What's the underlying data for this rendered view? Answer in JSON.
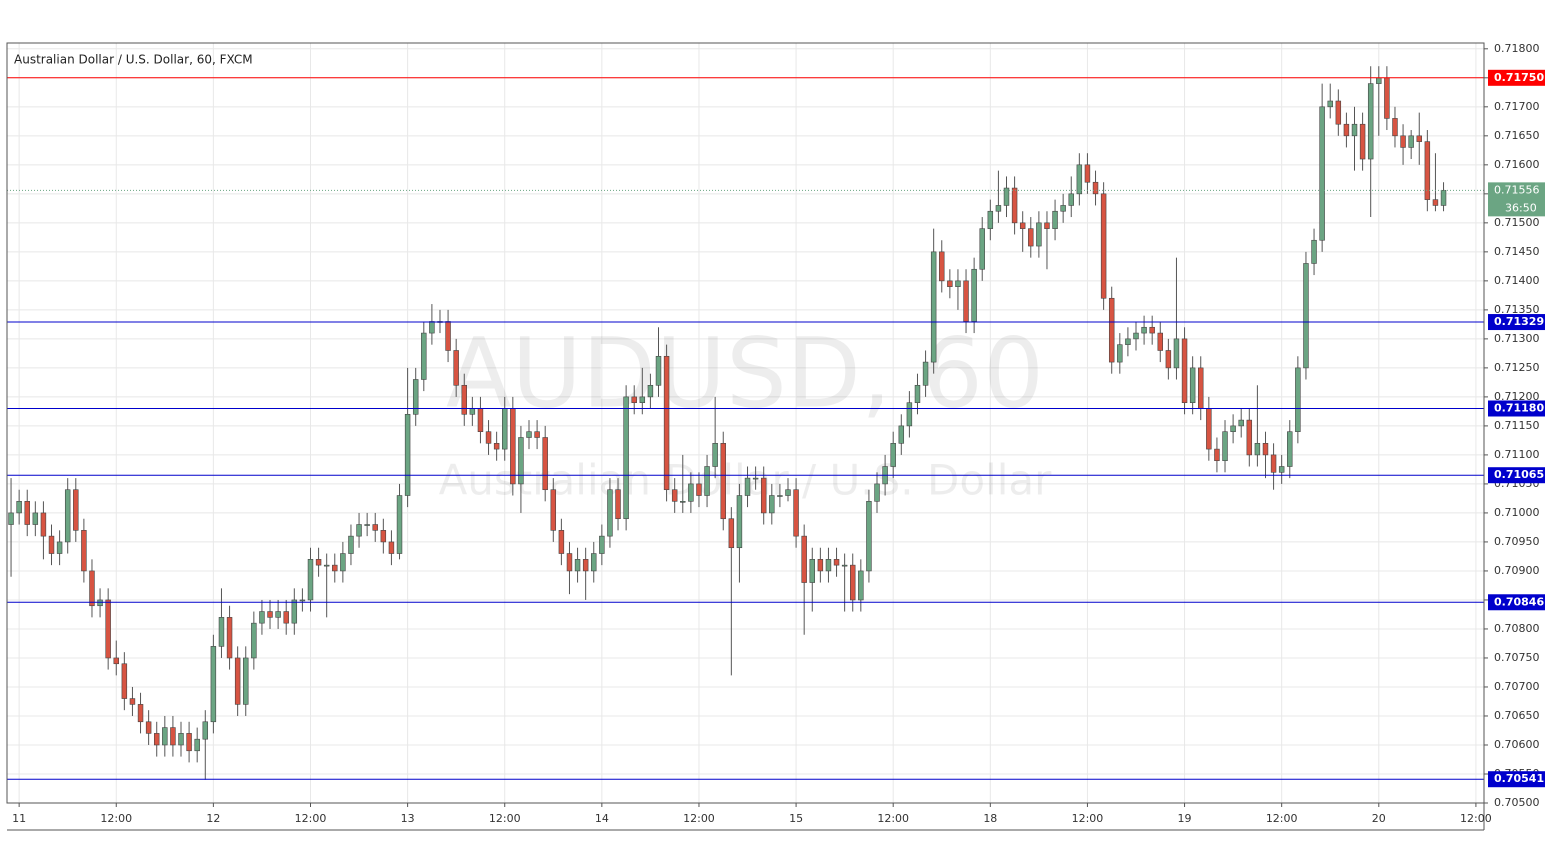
{
  "chart_data": {
    "type": "candlestick",
    "title": "Australian Dollar / U.S. Dollar, 60, FXCM",
    "watermark": "AUDUSD, 60",
    "watermark_subtitle": "Australian Dollar / U.S. Dollar",
    "up_color": "#6ba583",
    "down_color": "#d75442",
    "grid": true,
    "ylim": [
      0.705,
      0.7181
    ],
    "xlim": [
      -0.5,
      182
    ],
    "yticks": [
      {
        "value": 0.705,
        "label": "0.70500"
      },
      {
        "value": 0.7055,
        "label": "0.70550"
      },
      {
        "value": 0.706,
        "label": "0.70600"
      },
      {
        "value": 0.7065,
        "label": "0.70650"
      },
      {
        "value": 0.707,
        "label": "0.70700"
      },
      {
        "value": 0.7075,
        "label": "0.70750"
      },
      {
        "value": 0.708,
        "label": "0.70800"
      },
      {
        "value": 0.7085,
        "label": "0.70850"
      },
      {
        "value": 0.709,
        "label": "0.70900"
      },
      {
        "value": 0.7095,
        "label": "0.70950"
      },
      {
        "value": 0.71,
        "label": "0.71000"
      },
      {
        "value": 0.7105,
        "label": "0.71050"
      },
      {
        "value": 0.711,
        "label": "0.71100"
      },
      {
        "value": 0.7115,
        "label": "0.71150"
      },
      {
        "value": 0.712,
        "label": "0.71200"
      },
      {
        "value": 0.7125,
        "label": "0.71250"
      },
      {
        "value": 0.713,
        "label": "0.71300"
      },
      {
        "value": 0.7135,
        "label": "0.71350"
      },
      {
        "value": 0.714,
        "label": "0.71400"
      },
      {
        "value": 0.7145,
        "label": "0.71450"
      },
      {
        "value": 0.715,
        "label": "0.71500"
      },
      {
        "value": 0.7155,
        "label": "0.71550"
      },
      {
        "value": 0.716,
        "label": "0.71600"
      },
      {
        "value": 0.7165,
        "label": "0.71650"
      },
      {
        "value": 0.717,
        "label": "0.71700"
      },
      {
        "value": 0.7175,
        "label": "0.71750"
      },
      {
        "value": 0.718,
        "label": "0.71800"
      }
    ],
    "xticks": [
      {
        "value": 1,
        "label": "11"
      },
      {
        "value": 13,
        "label": "12:00"
      },
      {
        "value": 25,
        "label": "12"
      },
      {
        "value": 37,
        "label": "12:00"
      },
      {
        "value": 49,
        "label": "13"
      },
      {
        "value": 61,
        "label": "12:00"
      },
      {
        "value": 73,
        "label": "14"
      },
      {
        "value": 85,
        "label": "12:00"
      },
      {
        "value": 97,
        "label": "15"
      },
      {
        "value": 109,
        "label": "12:00"
      },
      {
        "value": 121,
        "label": "18"
      },
      {
        "value": 133,
        "label": "12:00"
      },
      {
        "value": 145,
        "label": "19"
      },
      {
        "value": 157,
        "label": "12:00"
      },
      {
        "value": 169,
        "label": "20"
      },
      {
        "value": 181,
        "label": "12:00"
      }
    ],
    "levels": [
      {
        "value": 0.7175,
        "label": "0.71750",
        "color": "#ff0000"
      },
      {
        "value": 0.71329,
        "label": "0.71329",
        "color": "#0000cc"
      },
      {
        "value": 0.7118,
        "label": "0.71180",
        "color": "#0000cc"
      },
      {
        "value": 0.71065,
        "label": "0.71065",
        "color": "#0000cc"
      },
      {
        "value": 0.70846,
        "label": "0.70846",
        "color": "#0000cc"
      },
      {
        "value": 0.70541,
        "label": "0.70541",
        "color": "#0000cc"
      }
    ],
    "last_price": {
      "value": 0.71556,
      "label": "0.71556",
      "countdown": "36:50"
    },
    "ohlc": [
      [
        0.7098,
        0.7106,
        0.7089,
        0.71
      ],
      [
        0.71,
        0.7104,
        0.7098,
        0.7102
      ],
      [
        0.7102,
        0.7104,
        0.7096,
        0.7098
      ],
      [
        0.7098,
        0.7102,
        0.7096,
        0.71
      ],
      [
        0.71,
        0.7102,
        0.7092,
        0.7096
      ],
      [
        0.7096,
        0.7098,
        0.7091,
        0.7093
      ],
      [
        0.7093,
        0.7097,
        0.7091,
        0.7095
      ],
      [
        0.7095,
        0.7106,
        0.7093,
        0.7104
      ],
      [
        0.7104,
        0.7106,
        0.7095,
        0.7097
      ],
      [
        0.7097,
        0.7099,
        0.7088,
        0.709
      ],
      [
        0.709,
        0.7092,
        0.7082,
        0.7084
      ],
      [
        0.7084,
        0.7087,
        0.7082,
        0.7085
      ],
      [
        0.7085,
        0.7087,
        0.7073,
        0.7075
      ],
      [
        0.7075,
        0.7078,
        0.7072,
        0.7074
      ],
      [
        0.7074,
        0.7076,
        0.7066,
        0.7068
      ],
      [
        0.7068,
        0.707,
        0.7065,
        0.7067
      ],
      [
        0.7067,
        0.7069,
        0.7062,
        0.7064
      ],
      [
        0.7064,
        0.7066,
        0.706,
        0.7062
      ],
      [
        0.7062,
        0.7064,
        0.7058,
        0.706
      ],
      [
        0.706,
        0.7065,
        0.7058,
        0.7063
      ],
      [
        0.7063,
        0.7065,
        0.7058,
        0.706
      ],
      [
        0.706,
        0.7064,
        0.7058,
        0.7062
      ],
      [
        0.7062,
        0.7064,
        0.7057,
        0.7059
      ],
      [
        0.7059,
        0.7063,
        0.7057,
        0.7061
      ],
      [
        0.7061,
        0.7066,
        0.7054,
        0.7064
      ],
      [
        0.7064,
        0.7079,
        0.7062,
        0.7077
      ],
      [
        0.7077,
        0.7087,
        0.7075,
        0.7082
      ],
      [
        0.7082,
        0.7084,
        0.7073,
        0.7075
      ],
      [
        0.7075,
        0.7077,
        0.7065,
        0.7067
      ],
      [
        0.7067,
        0.7077,
        0.7065,
        0.7075
      ],
      [
        0.7075,
        0.7083,
        0.7073,
        0.7081
      ],
      [
        0.7081,
        0.7085,
        0.7079,
        0.7083
      ],
      [
        0.7083,
        0.7085,
        0.708,
        0.7082
      ],
      [
        0.7082,
        0.7085,
        0.708,
        0.7083
      ],
      [
        0.7083,
        0.7085,
        0.7079,
        0.7081
      ],
      [
        0.7081,
        0.7087,
        0.7079,
        0.7085
      ],
      [
        0.7085,
        0.7087,
        0.7083,
        0.7085
      ],
      [
        0.7085,
        0.7094,
        0.7083,
        0.7092
      ],
      [
        0.7092,
        0.7094,
        0.7089,
        0.7091
      ],
      [
        0.7091,
        0.7093,
        0.7082,
        0.7091
      ],
      [
        0.7091,
        0.7093,
        0.7088,
        0.709
      ],
      [
        0.709,
        0.7095,
        0.7088,
        0.7093
      ],
      [
        0.7093,
        0.7098,
        0.7091,
        0.7096
      ],
      [
        0.7096,
        0.71,
        0.7094,
        0.7098
      ],
      [
        0.7098,
        0.71,
        0.7096,
        0.7098
      ],
      [
        0.7098,
        0.71,
        0.7095,
        0.7097
      ],
      [
        0.7097,
        0.7099,
        0.7093,
        0.7095
      ],
      [
        0.7095,
        0.7097,
        0.7091,
        0.7093
      ],
      [
        0.7093,
        0.7105,
        0.7092,
        0.7103
      ],
      [
        0.7103,
        0.7125,
        0.7101,
        0.7117
      ],
      [
        0.7117,
        0.7125,
        0.7115,
        0.7123
      ],
      [
        0.7123,
        0.7133,
        0.7121,
        0.7131
      ],
      [
        0.7131,
        0.7136,
        0.7129,
        0.7133
      ],
      [
        0.7133,
        0.7135,
        0.7131,
        0.7133
      ],
      [
        0.7133,
        0.7135,
        0.7126,
        0.7128
      ],
      [
        0.7128,
        0.713,
        0.712,
        0.7122
      ],
      [
        0.7122,
        0.7124,
        0.7115,
        0.7117
      ],
      [
        0.7117,
        0.712,
        0.7115,
        0.7118
      ],
      [
        0.7118,
        0.712,
        0.7112,
        0.7114
      ],
      [
        0.7114,
        0.7116,
        0.711,
        0.7112
      ],
      [
        0.7112,
        0.7114,
        0.7109,
        0.7111
      ],
      [
        0.7111,
        0.712,
        0.7109,
        0.7118
      ],
      [
        0.7118,
        0.712,
        0.7103,
        0.7105
      ],
      [
        0.7105,
        0.7115,
        0.71,
        0.7113
      ],
      [
        0.7113,
        0.7116,
        0.7111,
        0.7114
      ],
      [
        0.7114,
        0.7116,
        0.7111,
        0.7113
      ],
      [
        0.7113,
        0.7115,
        0.7102,
        0.7104
      ],
      [
        0.7104,
        0.7106,
        0.7095,
        0.7097
      ],
      [
        0.7097,
        0.7099,
        0.7091,
        0.7093
      ],
      [
        0.7093,
        0.7095,
        0.7086,
        0.709
      ],
      [
        0.709,
        0.7094,
        0.7088,
        0.7092
      ],
      [
        0.7092,
        0.7094,
        0.7085,
        0.709
      ],
      [
        0.709,
        0.7095,
        0.7088,
        0.7093
      ],
      [
        0.7093,
        0.7098,
        0.7091,
        0.7096
      ],
      [
        0.7096,
        0.7106,
        0.7094,
        0.7104
      ],
      [
        0.7104,
        0.7106,
        0.7097,
        0.7099
      ],
      [
        0.7099,
        0.7122,
        0.7097,
        0.712
      ],
      [
        0.712,
        0.7122,
        0.7117,
        0.7119
      ],
      [
        0.7119,
        0.7125,
        0.7117,
        0.712
      ],
      [
        0.712,
        0.7124,
        0.7118,
        0.7122
      ],
      [
        0.7122,
        0.7132,
        0.712,
        0.7127
      ],
      [
        0.7127,
        0.7129,
        0.7102,
        0.7104
      ],
      [
        0.7104,
        0.7106,
        0.71,
        0.7102
      ],
      [
        0.7102,
        0.711,
        0.71,
        0.7102
      ],
      [
        0.7102,
        0.7107,
        0.71,
        0.7105
      ],
      [
        0.7105,
        0.7107,
        0.7101,
        0.7103
      ],
      [
        0.7103,
        0.711,
        0.7101,
        0.7108
      ],
      [
        0.7108,
        0.712,
        0.7106,
        0.7112
      ],
      [
        0.7112,
        0.7114,
        0.7097,
        0.7099
      ],
      [
        0.7099,
        0.7101,
        0.7072,
        0.7094
      ],
      [
        0.7094,
        0.7105,
        0.7088,
        0.7103
      ],
      [
        0.7103,
        0.7108,
        0.7101,
        0.7106
      ],
      [
        0.7106,
        0.7108,
        0.7104,
        0.7106
      ],
      [
        0.7106,
        0.7108,
        0.7098,
        0.71
      ],
      [
        0.71,
        0.7105,
        0.7098,
        0.7103
      ],
      [
        0.7103,
        0.7105,
        0.7101,
        0.7103
      ],
      [
        0.7103,
        0.7106,
        0.7102,
        0.7104
      ],
      [
        0.7104,
        0.7106,
        0.7094,
        0.7096
      ],
      [
        0.7096,
        0.7098,
        0.7079,
        0.7088
      ],
      [
        0.7088,
        0.7094,
        0.7083,
        0.7092
      ],
      [
        0.7092,
        0.7094,
        0.7088,
        0.709
      ],
      [
        0.709,
        0.7094,
        0.7088,
        0.7092
      ],
      [
        0.7092,
        0.7094,
        0.7089,
        0.7091
      ],
      [
        0.7091,
        0.7093,
        0.7083,
        0.7091
      ],
      [
        0.7091,
        0.7093,
        0.7083,
        0.7085
      ],
      [
        0.7085,
        0.7092,
        0.7083,
        0.709
      ],
      [
        0.709,
        0.7104,
        0.7088,
        0.7102
      ],
      [
        0.7102,
        0.7107,
        0.71,
        0.7105
      ],
      [
        0.7105,
        0.711,
        0.7103,
        0.7108
      ],
      [
        0.7108,
        0.7114,
        0.7106,
        0.7112
      ],
      [
        0.7112,
        0.7117,
        0.711,
        0.7115
      ],
      [
        0.7115,
        0.7121,
        0.7113,
        0.7119
      ],
      [
        0.7119,
        0.7124,
        0.7117,
        0.7122
      ],
      [
        0.7122,
        0.7128,
        0.712,
        0.7126
      ],
      [
        0.7126,
        0.7149,
        0.7124,
        0.7145
      ],
      [
        0.7145,
        0.7147,
        0.7138,
        0.714
      ],
      [
        0.714,
        0.7142,
        0.7137,
        0.7139
      ],
      [
        0.7139,
        0.7142,
        0.7135,
        0.714
      ],
      [
        0.714,
        0.7142,
        0.7131,
        0.7133
      ],
      [
        0.7133,
        0.7144,
        0.7131,
        0.7142
      ],
      [
        0.7142,
        0.7151,
        0.714,
        0.7149
      ],
      [
        0.7149,
        0.7154,
        0.7147,
        0.7152
      ],
      [
        0.7152,
        0.7159,
        0.715,
        0.7153
      ],
      [
        0.7153,
        0.7158,
        0.7151,
        0.7156
      ],
      [
        0.7156,
        0.7158,
        0.7148,
        0.715
      ],
      [
        0.715,
        0.7152,
        0.7145,
        0.7149
      ],
      [
        0.7149,
        0.7151,
        0.7144,
        0.7146
      ],
      [
        0.7146,
        0.7152,
        0.7144,
        0.715
      ],
      [
        0.715,
        0.7152,
        0.7142,
        0.7149
      ],
      [
        0.7149,
        0.7154,
        0.7147,
        0.7152
      ],
      [
        0.7152,
        0.7155,
        0.715,
        0.7153
      ],
      [
        0.7153,
        0.7158,
        0.7151,
        0.7155
      ],
      [
        0.7155,
        0.7162,
        0.7153,
        0.716
      ],
      [
        0.716,
        0.7162,
        0.7155,
        0.7157
      ],
      [
        0.7157,
        0.7159,
        0.7153,
        0.7155
      ],
      [
        0.7155,
        0.7157,
        0.7135,
        0.7137
      ],
      [
        0.7137,
        0.7139,
        0.7124,
        0.7126
      ],
      [
        0.7126,
        0.7131,
        0.7124,
        0.7129
      ],
      [
        0.7129,
        0.7132,
        0.7127,
        0.713
      ],
      [
        0.713,
        0.7133,
        0.7128,
        0.7131
      ],
      [
        0.7131,
        0.7134,
        0.7129,
        0.7132
      ],
      [
        0.7132,
        0.7134,
        0.7129,
        0.7131
      ],
      [
        0.7131,
        0.7133,
        0.7126,
        0.7128
      ],
      [
        0.7128,
        0.713,
        0.7123,
        0.7125
      ],
      [
        0.7125,
        0.7144,
        0.7123,
        0.713
      ],
      [
        0.713,
        0.7132,
        0.7117,
        0.7119
      ],
      [
        0.7119,
        0.7127,
        0.7117,
        0.7125
      ],
      [
        0.7125,
        0.7127,
        0.7116,
        0.7118
      ],
      [
        0.7118,
        0.712,
        0.7109,
        0.7111
      ],
      [
        0.7111,
        0.7113,
        0.7107,
        0.7109
      ],
      [
        0.7109,
        0.7116,
        0.7107,
        0.7114
      ],
      [
        0.7114,
        0.7117,
        0.7112,
        0.7115
      ],
      [
        0.7115,
        0.7118,
        0.7113,
        0.7116
      ],
      [
        0.7116,
        0.7118,
        0.7108,
        0.711
      ],
      [
        0.711,
        0.7122,
        0.7108,
        0.7112
      ],
      [
        0.7112,
        0.7114,
        0.7106,
        0.711
      ],
      [
        0.711,
        0.7112,
        0.7104,
        0.7107
      ],
      [
        0.7107,
        0.711,
        0.7105,
        0.7108
      ],
      [
        0.7108,
        0.7116,
        0.7106,
        0.7114
      ],
      [
        0.7114,
        0.7127,
        0.7112,
        0.7125
      ],
      [
        0.7125,
        0.7145,
        0.7123,
        0.7143
      ],
      [
        0.7143,
        0.7149,
        0.7141,
        0.7147
      ],
      [
        0.7147,
        0.7174,
        0.7145,
        0.717
      ],
      [
        0.717,
        0.7174,
        0.7168,
        0.7171
      ],
      [
        0.7171,
        0.7173,
        0.7165,
        0.7167
      ],
      [
        0.7167,
        0.7169,
        0.7163,
        0.7165
      ],
      [
        0.7165,
        0.717,
        0.7159,
        0.7167
      ],
      [
        0.7167,
        0.7169,
        0.7159,
        0.7161
      ],
      [
        0.7161,
        0.7177,
        0.7151,
        0.7174
      ],
      [
        0.7174,
        0.7177,
        0.7165,
        0.7175
      ],
      [
        0.7175,
        0.7177,
        0.7166,
        0.7168
      ],
      [
        0.7168,
        0.717,
        0.7163,
        0.7165
      ],
      [
        0.7165,
        0.7167,
        0.716,
        0.7163
      ],
      [
        0.7163,
        0.7166,
        0.7161,
        0.7165
      ],
      [
        0.7165,
        0.7169,
        0.716,
        0.7164
      ],
      [
        0.7164,
        0.7166,
        0.7152,
        0.7154
      ],
      [
        0.7154,
        0.7162,
        0.7152,
        0.7153
      ],
      [
        0.7153,
        0.7157,
        0.7152,
        0.71556
      ]
    ]
  }
}
